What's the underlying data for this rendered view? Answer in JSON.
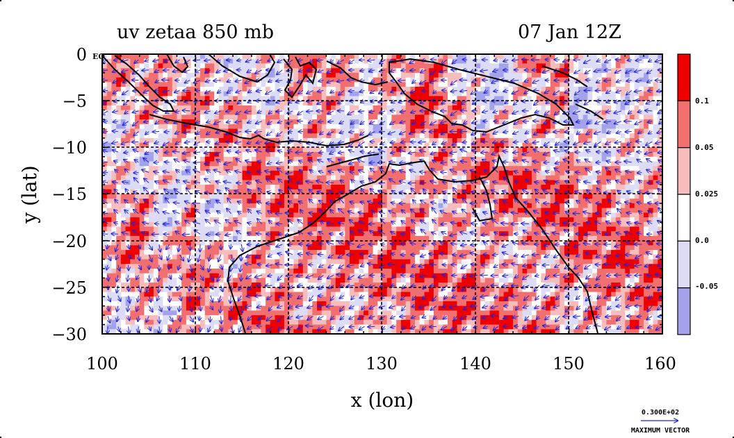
{
  "chart_data": {
    "type": "heatmap",
    "title_left": "uv zetaa 850 mb",
    "title_right": "07 Jan 12Z",
    "xlabel": "x (lon)",
    "ylabel": "y (lat)",
    "xlim": [
      100,
      160
    ],
    "ylim": [
      -30,
      0
    ],
    "x_ticks": [
      "100",
      "110",
      "120",
      "130",
      "140",
      "150",
      "160"
    ],
    "x_tick_values": [
      100,
      110,
      120,
      130,
      140,
      150,
      160
    ],
    "y_ticks": [
      "0",
      "−5",
      "−10",
      "−15",
      "−20",
      "−25",
      "−30"
    ],
    "y_tick_values": [
      0,
      -5,
      -10,
      -15,
      -20,
      -25,
      -30
    ],
    "corner_label": "EQ",
    "grid": true,
    "colorbar": {
      "levels": [
        {
          "label": "",
          "color": "#ee0000"
        },
        {
          "label": "0.1",
          "color": "#f26f6f"
        },
        {
          "label": "0.05",
          "color": "#f7bcbc"
        },
        {
          "label": "0.025",
          "color": "#ffffff"
        },
        {
          "label": "0.0",
          "color": "#dcdcf6"
        },
        {
          "label": "-0.05",
          "color": "#a3a3ec"
        }
      ]
    },
    "vector_legend": {
      "value": "0.300E+02",
      "label": "MAXIMUM VECTOR"
    },
    "colors": {
      "strong_pos": "#ee0000",
      "mid_pos": "#f26f6f",
      "weak_pos": "#f7bcbc",
      "near_zero": "#ffffff",
      "weak_neg": "#dcdcf6",
      "neg": "#a3a3ec",
      "coast": "#000000",
      "vector": "#2222dd"
    }
  }
}
